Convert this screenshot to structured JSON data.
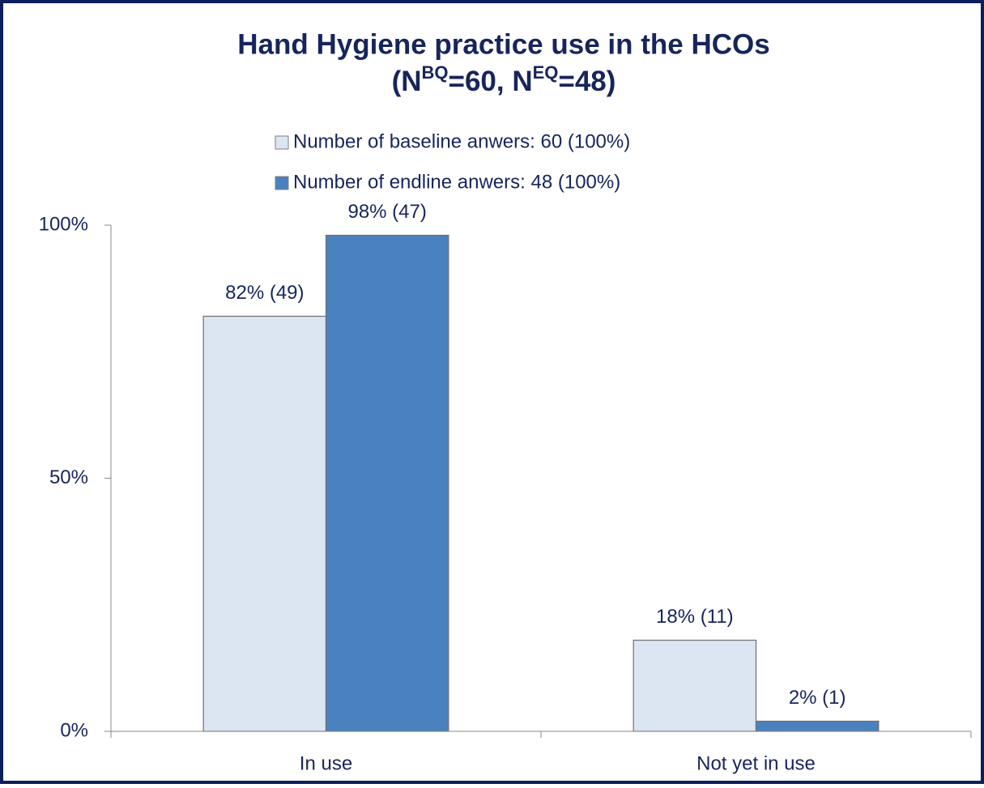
{
  "chart_data": {
    "type": "bar",
    "title": [
      "Hand Hygiene practice use in the HCOs",
      "(N",
      "BQ",
      "=60, N",
      "EQ",
      "=48)"
    ],
    "categories": [
      "In use",
      "Not yet in use"
    ],
    "series": [
      {
        "name": "Number of baseline anwers: 60 (100%)",
        "color": "#dce6f2",
        "values": [
          82,
          18
        ],
        "value_labels": [
          "82% (49)",
          "18% (11)"
        ]
      },
      {
        "name": "Number of endline anwers: 48 (100%)",
        "color": "#4a81bf",
        "values": [
          98,
          2
        ],
        "value_labels": [
          "98% (47)",
          "2% (1)"
        ]
      }
    ],
    "ylim": [
      0,
      100
    ],
    "yticks": [
      {
        "value": 0,
        "label": "0%"
      },
      {
        "value": 50,
        "label": "50%"
      },
      {
        "value": 100,
        "label": "100%"
      }
    ],
    "grid": false,
    "legend": "top"
  }
}
